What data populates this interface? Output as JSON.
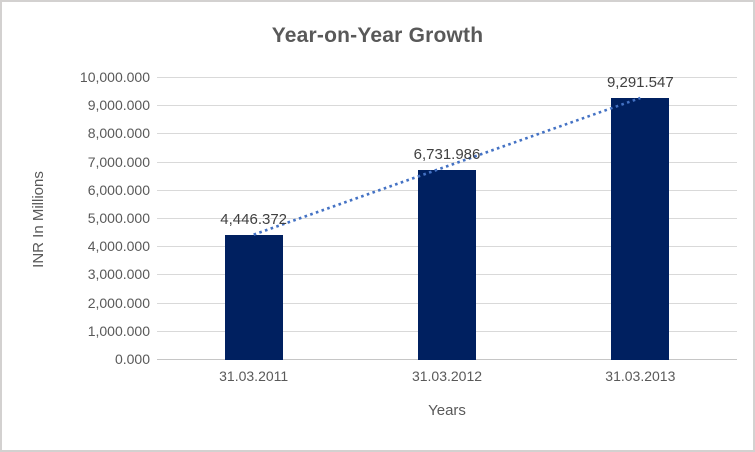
{
  "window": {
    "background": "#FFFFFF",
    "border_color": "#D3D1D0"
  },
  "chart_data": {
    "type": "bar",
    "title": "Year-on-Year Growth",
    "categories": [
      "31.03.2011",
      "31.03.2012",
      "31.03.2013"
    ],
    "values": [
      4446.372,
      6731.986,
      9291.547
    ],
    "value_labels": [
      "4,446.372",
      "6,731.986",
      "9,291.547"
    ],
    "xlabel": "Years",
    "ylabel": "INR In Millions",
    "ylim": [
      0,
      10000
    ],
    "ytick_step": 1000,
    "ytick_labels": [
      "0.000",
      "1,000.000",
      "2,000.000",
      "3,000.000",
      "4,000.000",
      "5,000.000",
      "6,000.000",
      "7,000.000",
      "8,000.000",
      "9,000.000",
      "10,000.000"
    ],
    "grid": true,
    "legend": "none",
    "bar_color": "#002060",
    "text_color": "#595959",
    "data_label_color": "#404040",
    "gridline_color": "#D9D9D9",
    "trendline": {
      "type": "linear",
      "style": "dotted",
      "color": "#4472C4",
      "from_value": 4446.372,
      "to_value": 9291.547
    }
  }
}
